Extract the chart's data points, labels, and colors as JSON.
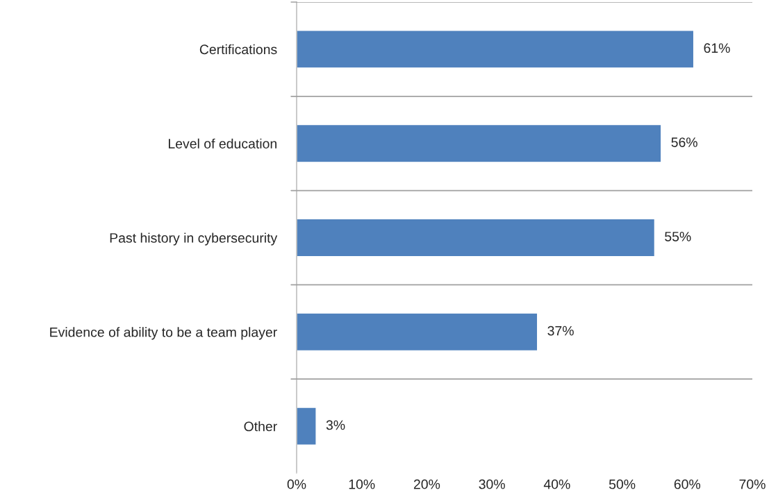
{
  "chart_data": {
    "type": "bar",
    "orientation": "horizontal",
    "categories": [
      "Certifications",
      "Level of education",
      "Past history in cybersecurity",
      "Evidence of ability to be a team player",
      "Other"
    ],
    "values": [
      61,
      56,
      55,
      37,
      3
    ],
    "value_labels": [
      "61%",
      "56%",
      "55%",
      "37%",
      "3%"
    ],
    "color": "#4f81bd",
    "xlim": [
      0,
      70
    ],
    "xticks": [
      {
        "value": 0,
        "label": "0%"
      },
      {
        "value": 10,
        "label": "10%"
      },
      {
        "value": 20,
        "label": "20%"
      },
      {
        "value": 30,
        "label": "30%"
      },
      {
        "value": 40,
        "label": "40%"
      },
      {
        "value": 50,
        "label": "50%"
      },
      {
        "value": 60,
        "label": "60%"
      },
      {
        "value": 70,
        "label": "70%"
      }
    ],
    "grid": "y",
    "legend": false
  }
}
